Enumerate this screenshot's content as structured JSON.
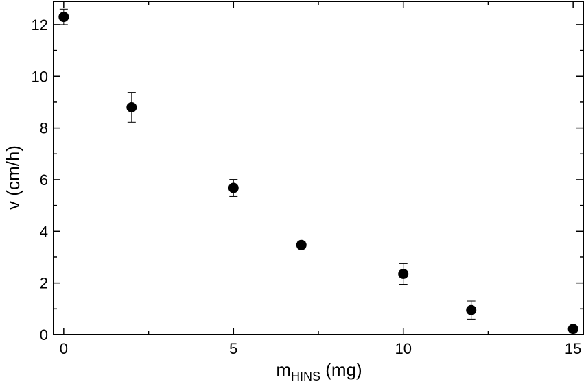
{
  "chart_data": {
    "type": "scatter",
    "xlabel": {
      "main": "m",
      "sub": "HINS",
      "unit": " (mg)"
    },
    "ylabel": "v (cm/h)",
    "xlim": [
      -0.3,
      15.3
    ],
    "ylim": [
      0,
      12.9
    ],
    "x_major_ticks": [
      0,
      5,
      10,
      15
    ],
    "x_minor_ticks": [
      2.5,
      7.5,
      12.5
    ],
    "y_major_ticks": [
      0,
      2,
      4,
      6,
      8,
      10,
      12
    ],
    "y_minor_ticks": [
      1,
      3,
      5,
      7,
      9,
      11
    ],
    "grid": false,
    "legend": "none",
    "marker_color": "#000000",
    "points": [
      {
        "x": 0,
        "y": 12.3,
        "err": 0.3
      },
      {
        "x": 2,
        "y": 8.8,
        "err": 0.58
      },
      {
        "x": 5,
        "y": 5.68,
        "err": 0.33
      },
      {
        "x": 7,
        "y": 3.47,
        "err": 0.12
      },
      {
        "x": 10,
        "y": 2.35,
        "err": 0.4
      },
      {
        "x": 12,
        "y": 0.95,
        "err": 0.35
      },
      {
        "x": 15,
        "y": 0.22,
        "err": 0.05
      }
    ]
  }
}
